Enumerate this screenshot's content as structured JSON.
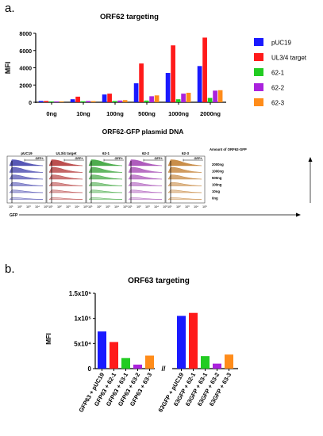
{
  "panel_a": {
    "letter": "a.",
    "chart_data": {
      "type": "bar",
      "title": "ORF62 targeting",
      "ylabel": "MFI",
      "xlabel": "",
      "categories": [
        "0ng",
        "10ng",
        "100ng",
        "500ng",
        "1000ng",
        "2000ng"
      ],
      "ylim": [
        0,
        8000
      ],
      "yticks": [
        "0",
        "2000",
        "4000",
        "6000",
        "8000"
      ],
      "yticks_values": [
        0,
        2000,
        4000,
        6000,
        8000
      ],
      "legend_position": "right",
      "series": [
        {
          "name": "pUC19",
          "color": "#1a1aff",
          "values": [
            150,
            350,
            900,
            2200,
            3400,
            4200
          ]
        },
        {
          "name": "UL3/4 target",
          "color": "#ff1a1a",
          "values": [
            150,
            650,
            1000,
            4500,
            6600,
            7500
          ]
        },
        {
          "name": "62-1",
          "color": "#22cc22",
          "values": [
            100,
            120,
            150,
            200,
            350,
            500
          ]
        },
        {
          "name": "62-2",
          "color": "#aa22dd",
          "values": [
            100,
            150,
            200,
            700,
            1000,
            1350
          ]
        },
        {
          "name": "62-3",
          "color": "#ff8c1a",
          "values": [
            100,
            130,
            250,
            800,
            1100,
            1400
          ]
        }
      ]
    },
    "histogram": {
      "title": "ORF62-GFP plasmid DNA",
      "panels": [
        {
          "label": "pUC19",
          "color": "#3a3aa8"
        },
        {
          "label": "UL3/4 target",
          "color": "#b03030"
        },
        {
          "label": "62-1",
          "color": "#2e9e2e"
        },
        {
          "label": "62-2",
          "color": "#a040b0"
        },
        {
          "label": "62-3",
          "color": "#c07a2a"
        }
      ],
      "gate_label": "GFP+",
      "x_ticks": [
        "10¹",
        "10²",
        "10³",
        "10⁴",
        "10⁵"
      ],
      "x_axis_label": "GFP",
      "amount_header": "Amount of ORF62-GFP",
      "amounts": [
        "2000ng",
        "1000ng",
        "500ng",
        "100ng",
        "10ng",
        "0ng"
      ]
    }
  },
  "panel_b": {
    "letter": "b.",
    "chart_data": {
      "type": "bar",
      "title": "ORF63 targeting",
      "ylabel": "MFI",
      "xlabel": "",
      "ylim": [
        0,
        150000
      ],
      "yticks": [
        "0",
        "5x10⁴",
        "1x10⁵",
        "1.5x10⁵"
      ],
      "yticks_values": [
        0,
        50000,
        100000,
        150000
      ],
      "categories": [
        "GFP63 + pUC19",
        "GFP63 + 62-1",
        "GFP63 + 63-1",
        "GFP63 + 63-2",
        "GFP63 + 63-3",
        "63GFP + pUC19",
        "63GFP + 62-1",
        "63GFP + 63-1",
        "63GFP + 63-2",
        "63GFP + 63-3"
      ],
      "values": [
        74000,
        53000,
        21000,
        8000,
        26000,
        105000,
        111000,
        25000,
        10000,
        28000
      ],
      "colors": [
        "#1a1aff",
        "#ff1a1a",
        "#22cc22",
        "#aa22dd",
        "#ff8c1a",
        "#1a1aff",
        "#ff1a1a",
        "#22cc22",
        "#aa22dd",
        "#ff8c1a"
      ]
    }
  }
}
